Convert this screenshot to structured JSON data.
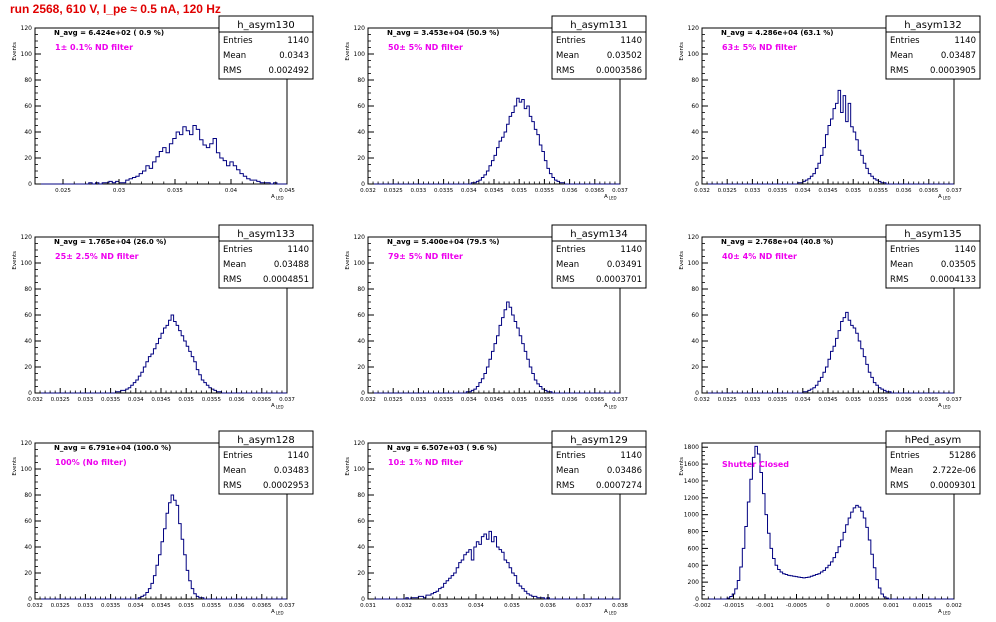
{
  "page": {
    "title": "run 2568,   610 V, I_pe ≈ 0.5 nA, 120 Hz"
  },
  "stats_labels": {
    "entries": "Entries",
    "mean": "Mean",
    "rms": "RMS"
  },
  "colors": {
    "histogram": "#000080",
    "annotation": "#ee00ee",
    "title": "#e00000",
    "axis": "#000000"
  },
  "chart_data": [
    {
      "type": "bar",
      "name": "h_asym130",
      "navg": "N_avg = 6.424e+02 ( 0.9 %)",
      "annotation": "1± 0.1% ND filter",
      "stats": {
        "entries": "1140",
        "mean": "0.0343",
        "rms": "0.002492"
      },
      "ylabel": "Events",
      "xlabel": "A_LED",
      "xlim": [
        0.0225,
        0.045
      ],
      "ylim": [
        0,
        120
      ],
      "xticks": [
        0.025,
        0.03,
        0.035,
        0.04,
        0.045
      ],
      "xtick_labels": [
        "0.025",
        "0.03",
        "0.035",
        "0.04",
        "0.045"
      ],
      "yticks": [
        0,
        20,
        40,
        60,
        80,
        100,
        120
      ],
      "bin_start": 0.0225,
      "bin_width": 0.0003,
      "values": [
        0,
        0,
        0,
        0,
        0,
        0,
        0,
        0,
        0,
        0,
        0,
        0,
        0,
        0,
        0,
        0,
        1,
        0,
        1,
        0,
        1,
        1,
        2,
        1,
        2,
        1,
        1,
        3,
        4,
        5,
        6,
        8,
        10,
        14,
        12,
        17,
        21,
        25,
        28,
        24,
        31,
        35,
        40,
        38,
        44,
        41,
        38,
        45,
        42,
        34,
        30,
        28,
        31,
        35,
        24,
        20,
        18,
        14,
        17,
        14,
        11,
        8,
        6,
        4,
        3,
        3,
        2,
        1,
        1,
        1,
        0,
        1,
        0,
        0,
        0
      ]
    },
    {
      "type": "bar",
      "name": "h_asym131",
      "navg": "N_avg = 3.453e+04 (50.9 %)",
      "annotation": "50± 5% ND filter",
      "stats": {
        "entries": "1140",
        "mean": "0.03502",
        "rms": "0.0003586"
      },
      "ylabel": "Events",
      "xlabel": "A_LED",
      "xlim": [
        0.032,
        0.037
      ],
      "ylim": [
        0,
        120
      ],
      "xticks": [
        0.032,
        0.0325,
        0.033,
        0.0335,
        0.034,
        0.0345,
        0.035,
        0.0355,
        0.036,
        0.0365,
        0.037
      ],
      "xtick_labels": [
        "0.032",
        "0.0325",
        "0.033",
        "0.0335",
        "0.034",
        "0.0345",
        "0.035",
        "0.0355",
        "0.036",
        "0.0365",
        "0.037"
      ],
      "yticks": [
        0,
        20,
        40,
        60,
        80,
        100,
        120
      ],
      "bin_start": 0.032,
      "bin_width": 5e-05,
      "values": [
        0,
        0,
        0,
        0,
        0,
        0,
        0,
        0,
        0,
        0,
        0,
        0,
        0,
        0,
        0,
        0,
        0,
        0,
        0,
        0,
        0,
        0,
        0,
        0,
        0,
        0,
        0,
        0,
        0,
        0,
        0,
        0,
        0,
        0,
        0,
        0,
        0,
        0,
        0,
        0,
        0,
        1,
        1,
        2,
        3,
        5,
        7,
        10,
        14,
        18,
        22,
        28,
        33,
        36,
        40,
        46,
        52,
        55,
        60,
        66,
        63,
        65,
        58,
        60,
        52,
        48,
        42,
        38,
        30,
        25,
        18,
        12,
        8,
        5,
        3,
        2,
        1,
        1,
        0,
        0,
        0,
        0,
        0,
        0,
        0,
        0,
        0,
        0,
        0,
        0,
        0,
        0,
        0,
        0,
        0,
        0,
        0,
        0,
        0,
        0
      ]
    },
    {
      "type": "bar",
      "name": "h_asym132",
      "navg": "N_avg = 4.286e+04 (63.1 %)",
      "annotation": "63± 5% ND filter",
      "stats": {
        "entries": "1140",
        "mean": "0.03487",
        "rms": "0.0003905"
      },
      "ylabel": "Events",
      "xlabel": "A_LED",
      "xlim": [
        0.032,
        0.037
      ],
      "ylim": [
        0,
        120
      ],
      "xticks": [
        0.032,
        0.0325,
        0.033,
        0.0335,
        0.034,
        0.0345,
        0.035,
        0.0355,
        0.036,
        0.0365,
        0.037
      ],
      "xtick_labels": [
        "0.032",
        "0.0325",
        "0.033",
        "0.0335",
        "0.034",
        "0.0345",
        "0.035",
        "0.0355",
        "0.036",
        "0.0365",
        "0.037"
      ],
      "yticks": [
        0,
        20,
        40,
        60,
        80,
        100,
        120
      ],
      "bin_start": 0.032,
      "bin_width": 5e-05,
      "values": [
        0,
        0,
        0,
        0,
        0,
        0,
        0,
        0,
        0,
        0,
        0,
        0,
        0,
        0,
        0,
        0,
        0,
        0,
        0,
        0,
        0,
        0,
        0,
        0,
        0,
        0,
        0,
        0,
        0,
        0,
        0,
        0,
        0,
        0,
        0,
        0,
        0,
        0,
        1,
        1,
        2,
        3,
        4,
        6,
        8,
        12,
        16,
        22,
        28,
        38,
        45,
        50,
        58,
        62,
        72,
        55,
        68,
        48,
        62,
        44,
        40,
        34,
        26,
        22,
        16,
        12,
        8,
        6,
        4,
        3,
        2,
        1,
        1,
        0,
        0,
        0,
        0,
        0,
        0,
        0,
        0,
        0,
        0,
        0,
        0,
        0,
        0,
        0,
        0,
        0,
        0,
        0,
        0,
        0,
        0,
        0,
        0,
        0,
        0,
        0
      ]
    },
    {
      "type": "bar",
      "name": "h_asym133",
      "navg": "N_avg = 1.765e+04 (26.0 %)",
      "annotation": "25± 2.5% ND filter",
      "stats": {
        "entries": "1140",
        "mean": "0.03488",
        "rms": "0.0004851"
      },
      "ylabel": "Events",
      "xlabel": "A_LED",
      "xlim": [
        0.032,
        0.037
      ],
      "ylim": [
        0,
        120
      ],
      "xticks": [
        0.032,
        0.0325,
        0.033,
        0.0335,
        0.034,
        0.0345,
        0.035,
        0.0355,
        0.036,
        0.0365,
        0.037
      ],
      "xtick_labels": [
        "0.032",
        "0.0325",
        "0.033",
        "0.0335",
        "0.034",
        "0.0345",
        "0.035",
        "0.0355",
        "0.036",
        "0.0365",
        "0.037"
      ],
      "yticks": [
        0,
        20,
        40,
        60,
        80,
        100,
        120
      ],
      "bin_start": 0.032,
      "bin_width": 5e-05,
      "values": [
        0,
        0,
        0,
        0,
        0,
        0,
        0,
        0,
        0,
        0,
        0,
        0,
        0,
        0,
        0,
        0,
        0,
        0,
        0,
        0,
        0,
        0,
        0,
        0,
        0,
        0,
        0,
        0,
        0,
        0,
        0,
        0,
        1,
        1,
        2,
        2,
        3,
        4,
        6,
        8,
        10,
        13,
        16,
        20,
        24,
        28,
        30,
        34,
        38,
        42,
        46,
        50,
        52,
        56,
        60,
        55,
        52,
        48,
        44,
        40,
        36,
        32,
        28,
        24,
        18,
        14,
        10,
        8,
        6,
        4,
        3,
        2,
        1,
        1,
        0,
        0,
        0,
        0,
        0,
        0,
        0,
        0,
        0,
        0,
        0,
        0,
        0,
        0,
        0,
        0,
        0,
        0,
        0,
        0,
        0,
        0,
        0,
        0,
        0,
        0
      ]
    },
    {
      "type": "bar",
      "name": "h_asym134",
      "navg": "N_avg = 5.400e+04 (79.5 %)",
      "annotation": "79± 5% ND filter",
      "stats": {
        "entries": "1140",
        "mean": "0.03491",
        "rms": "0.0003701"
      },
      "ylabel": "Events",
      "xlabel": "A_LED",
      "xlim": [
        0.032,
        0.037
      ],
      "ylim": [
        0,
        120
      ],
      "xticks": [
        0.032,
        0.0325,
        0.033,
        0.0335,
        0.034,
        0.0345,
        0.035,
        0.0355,
        0.036,
        0.0365,
        0.037
      ],
      "xtick_labels": [
        "0.032",
        "0.0325",
        "0.033",
        "0.0335",
        "0.034",
        "0.0345",
        "0.035",
        "0.0355",
        "0.036",
        "0.0365",
        "0.037"
      ],
      "yticks": [
        0,
        20,
        40,
        60,
        80,
        100,
        120
      ],
      "bin_start": 0.032,
      "bin_width": 5e-05,
      "values": [
        0,
        0,
        0,
        0,
        0,
        0,
        0,
        0,
        0,
        0,
        0,
        0,
        0,
        0,
        0,
        0,
        0,
        0,
        0,
        0,
        0,
        0,
        0,
        0,
        0,
        0,
        0,
        0,
        0,
        0,
        0,
        0,
        0,
        0,
        0,
        0,
        0,
        0,
        0,
        1,
        1,
        2,
        3,
        5,
        8,
        11,
        15,
        20,
        26,
        32,
        38,
        44,
        52,
        58,
        64,
        70,
        66,
        60,
        55,
        50,
        44,
        38,
        32,
        26,
        20,
        15,
        10,
        7,
        5,
        3,
        2,
        1,
        1,
        0,
        0,
        0,
        0,
        0,
        0,
        0,
        0,
        0,
        0,
        0,
        0,
        0,
        0,
        0,
        0,
        0,
        0,
        0,
        0,
        0,
        0,
        0,
        0,
        0,
        0,
        0
      ]
    },
    {
      "type": "bar",
      "name": "h_asym135",
      "navg": "N_avg = 2.768e+04 (40.8 %)",
      "annotation": "40± 4% ND filter",
      "stats": {
        "entries": "1140",
        "mean": "0.03505",
        "rms": "0.0004133"
      },
      "ylabel": "Events",
      "xlabel": "A_LED",
      "xlim": [
        0.032,
        0.037
      ],
      "ylim": [
        0,
        120
      ],
      "xticks": [
        0.032,
        0.0325,
        0.033,
        0.0335,
        0.034,
        0.0345,
        0.035,
        0.0355,
        0.036,
        0.0365,
        0.037
      ],
      "xtick_labels": [
        "0.032",
        "0.0325",
        "0.033",
        "0.0335",
        "0.034",
        "0.0345",
        "0.035",
        "0.0355",
        "0.036",
        "0.0365",
        "0.037"
      ],
      "yticks": [
        0,
        20,
        40,
        60,
        80,
        100,
        120
      ],
      "bin_start": 0.032,
      "bin_width": 5e-05,
      "values": [
        0,
        0,
        0,
        0,
        0,
        0,
        0,
        0,
        0,
        0,
        0,
        0,
        0,
        0,
        0,
        0,
        0,
        0,
        0,
        0,
        0,
        0,
        0,
        0,
        0,
        0,
        0,
        0,
        0,
        0,
        0,
        0,
        0,
        0,
        0,
        0,
        0,
        0,
        0,
        0,
        1,
        1,
        2,
        3,
        4,
        6,
        9,
        12,
        16,
        20,
        26,
        32,
        36,
        42,
        48,
        55,
        58,
        62,
        56,
        52,
        50,
        46,
        40,
        34,
        28,
        22,
        16,
        12,
        8,
        6,
        4,
        3,
        2,
        1,
        1,
        0,
        0,
        0,
        0,
        0,
        0,
        0,
        0,
        0,
        0,
        0,
        0,
        0,
        0,
        0,
        0,
        0,
        0,
        0,
        0,
        0,
        0,
        0,
        0,
        0
      ]
    },
    {
      "type": "bar",
      "name": "h_asym128",
      "navg": "N_avg = 6.791e+04 (100.0 %)",
      "annotation": "100% (No filter)",
      "stats": {
        "entries": "1140",
        "mean": "0.03483",
        "rms": "0.0002953"
      },
      "ylabel": "Events",
      "xlabel": "A_LED",
      "xlim": [
        0.032,
        0.037
      ],
      "ylim": [
        0,
        120
      ],
      "xticks": [
        0.032,
        0.0325,
        0.033,
        0.0335,
        0.034,
        0.0345,
        0.035,
        0.0355,
        0.036,
        0.0365,
        0.037
      ],
      "xtick_labels": [
        "0.032",
        "0.0325",
        "0.033",
        "0.0335",
        "0.034",
        "0.0345",
        "0.035",
        "0.0355",
        "0.036",
        "0.0365",
        "0.037"
      ],
      "yticks": [
        0,
        20,
        40,
        60,
        80,
        100,
        120
      ],
      "bin_start": 0.032,
      "bin_width": 5e-05,
      "values": [
        0,
        0,
        0,
        0,
        0,
        0,
        0,
        0,
        0,
        0,
        0,
        0,
        0,
        0,
        0,
        0,
        0,
        0,
        0,
        0,
        0,
        0,
        0,
        0,
        0,
        0,
        0,
        0,
        0,
        0,
        0,
        0,
        0,
        0,
        0,
        0,
        0,
        0,
        0,
        0,
        0,
        1,
        2,
        3,
        5,
        8,
        12,
        18,
        26,
        34,
        44,
        54,
        66,
        74,
        80,
        76,
        72,
        58,
        46,
        34,
        22,
        14,
        8,
        4,
        2,
        1,
        1,
        0,
        0,
        0,
        0,
        0,
        0,
        0,
        0,
        0,
        0,
        0,
        0,
        0,
        0,
        0,
        0,
        0,
        0,
        0,
        0,
        0,
        0,
        0,
        0,
        0,
        0,
        0,
        0,
        0,
        0,
        0,
        0,
        0
      ]
    },
    {
      "type": "bar",
      "name": "h_asym129",
      "navg": "N_avg = 6.507e+03 ( 9.6 %)",
      "annotation": "10± 1% ND filter",
      "stats": {
        "entries": "1140",
        "mean": "0.03486",
        "rms": "0.0007274"
      },
      "ylabel": "Events",
      "xlabel": "A_LED",
      "xlim": [
        0.031,
        0.038
      ],
      "ylim": [
        0,
        120
      ],
      "xticks": [
        0.031,
        0.032,
        0.033,
        0.034,
        0.035,
        0.036,
        0.037,
        0.038
      ],
      "xtick_labels": [
        "0.031",
        "0.032",
        "0.033",
        "0.034",
        "0.035",
        "0.036",
        "0.037",
        "0.038"
      ],
      "yticks": [
        0,
        20,
        40,
        60,
        80,
        100,
        120
      ],
      "bin_start": 0.031,
      "bin_width": 7e-05,
      "values": [
        0,
        0,
        0,
        0,
        0,
        0,
        0,
        0,
        0,
        0,
        0,
        0,
        0,
        0,
        0,
        1,
        0,
        1,
        1,
        1,
        2,
        2,
        1,
        3,
        3,
        4,
        5,
        6,
        8,
        9,
        12,
        14,
        16,
        18,
        20,
        24,
        28,
        30,
        34,
        36,
        38,
        30,
        40,
        44,
        42,
        48,
        50,
        46,
        52,
        44,
        48,
        40,
        38,
        36,
        30,
        28,
        24,
        20,
        18,
        12,
        10,
        8,
        6,
        4,
        3,
        2,
        2,
        1,
        1,
        1,
        0,
        1,
        0,
        0,
        0,
        0,
        0,
        0,
        0,
        0,
        0,
        0,
        0,
        0,
        0,
        0,
        0,
        0,
        0,
        0,
        0,
        0,
        0,
        0,
        0,
        0,
        0,
        0,
        0,
        0
      ]
    },
    {
      "type": "bar",
      "name": "hPed_asym",
      "annotation": "Shutter Closed",
      "stats": {
        "entries": "51286",
        "mean": "2.722e-06",
        "rms": "0.0009301"
      },
      "ylabel": "Events",
      "xlabel": "A_LED",
      "xlim": [
        -0.002,
        0.002
      ],
      "ylim": [
        0,
        1850
      ],
      "xticks": [
        -0.002,
        -0.0015,
        -0.001,
        -0.0005,
        0,
        0.0005,
        0.001,
        0.0015,
        0.002
      ],
      "xtick_labels": [
        "-0.002",
        "-0.0015",
        "-0.001",
        "-0.0005",
        "0",
        "0.0005",
        "0.001",
        "0.0015",
        "0.002"
      ],
      "yticks": [
        0,
        200,
        400,
        600,
        800,
        1000,
        1200,
        1400,
        1600,
        1800
      ],
      "bin_start": -0.002,
      "bin_width": 4e-05,
      "values": [
        0,
        0,
        0,
        0,
        0,
        0,
        0,
        0,
        0,
        0,
        10,
        30,
        60,
        120,
        220,
        380,
        600,
        860,
        1150,
        1420,
        1680,
        1810,
        1720,
        1500,
        1250,
        1000,
        780,
        600,
        480,
        400,
        350,
        320,
        300,
        290,
        280,
        275,
        270,
        265,
        260,
        255,
        250,
        255,
        260,
        270,
        280,
        290,
        300,
        320,
        340,
        370,
        400,
        440,
        490,
        550,
        620,
        700,
        790,
        880,
        960,
        1030,
        1080,
        1110,
        1090,
        1040,
        960,
        850,
        700,
        530,
        370,
        230,
        130,
        60,
        25,
        10,
        0,
        0,
        0,
        0,
        0,
        0,
        0,
        0,
        0,
        0,
        0,
        0,
        0,
        0,
        0,
        0,
        0,
        0,
        0,
        0,
        0,
        0,
        0,
        0,
        0,
        0
      ]
    }
  ]
}
